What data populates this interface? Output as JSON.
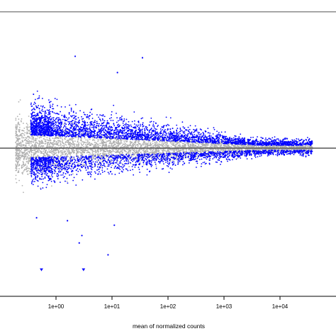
{
  "chart_data": {
    "type": "scatter",
    "title": "",
    "xlabel": "mean of normalized counts",
    "ylabel": "",
    "x_scale": "log10",
    "xlim": [
      0.1,
      100000
    ],
    "ylim": [
      -5,
      5
    ],
    "x_ticks": [
      1,
      10,
      100,
      1000,
      10000
    ],
    "x_tick_labels": [
      "1e+00",
      "1e+01",
      "1e+02",
      "1e+03",
      "1e+04"
    ],
    "grid": false,
    "legend": "none",
    "reference_lines": [
      {
        "orientation": "horizontal",
        "y": 0,
        "color": "#555555"
      },
      {
        "orientation": "horizontal",
        "y": 4.6,
        "color": "#555555"
      }
    ],
    "series": [
      {
        "role": "not significant",
        "color": "#b0b0b0",
        "marker": "point",
        "point_count_approx": 4000
      },
      {
        "role": "significant (adjusted p < 0.1)",
        "color": "#0000ff",
        "marker": "point",
        "point_count_approx": 5000
      }
    ],
    "notable_points": [
      {
        "x": 2.2,
        "y": 3.1,
        "series": 1
      },
      {
        "x": 35,
        "y": 3.05,
        "series": 1
      },
      {
        "x": 12.5,
        "y": 2.55,
        "series": 1
      },
      {
        "x": 0.55,
        "y": -4.1,
        "series": 1,
        "marker": "triangle-down"
      },
      {
        "x": 3.1,
        "y": -4.1,
        "series": 1,
        "marker": "triangle-down"
      },
      {
        "x": 1.6,
        "y": -2.45,
        "series": 1
      },
      {
        "x": 2.9,
        "y": -2.95,
        "series": 1
      },
      {
        "x": 2.6,
        "y": -3.2,
        "series": 1
      },
      {
        "x": 8.5,
        "y": -3.6,
        "series": 1
      },
      {
        "x": 0.45,
        "y": -2.35,
        "series": 1
      },
      {
        "x": 11,
        "y": -2.6,
        "series": 1
      }
    ]
  }
}
